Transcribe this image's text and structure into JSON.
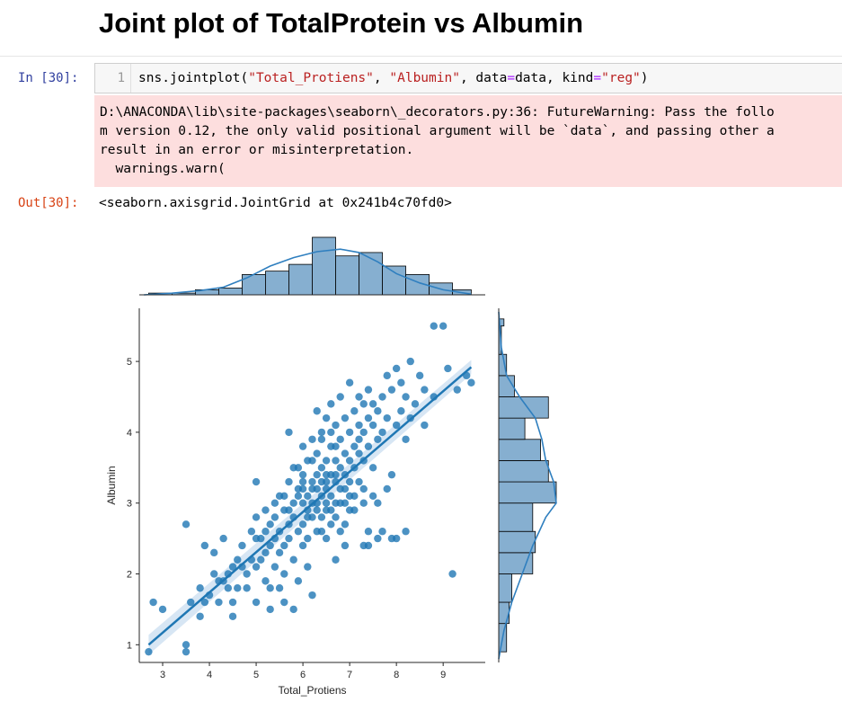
{
  "notebook": {
    "heading": "Joint plot of TotalProtein vs Albumin",
    "input_prompt": "In [30]:",
    "line_number": "1",
    "code": {
      "fn": "sns.jointplot(",
      "arg1": "\"Total_Protiens\"",
      "sep1": ", ",
      "arg2": "\"Albumin\"",
      "sep2": ", data",
      "eq1": "=",
      "mid": "data, kind",
      "eq2": "=",
      "arg3": "\"reg\"",
      "close": ")"
    },
    "warning_lines": [
      "D:\\ANACONDA\\lib\\site-packages\\seaborn\\_decorators.py:36: FutureWarning: Pass the follo",
      "m version 0.12, the only valid positional argument will be `data`, and passing other a",
      "result in an error or misinterpretation.",
      "  warnings.warn("
    ],
    "output_prompt": "Out[30]:",
    "output_text": "<seaborn.axisgrid.JointGrid at 0x241b4c70fd0>"
  },
  "chart_data": {
    "type": "scatter",
    "kind": "reg",
    "xlabel": "Total_Protiens",
    "ylabel": "Albumin",
    "xlim": [
      2.5,
      9.9
    ],
    "ylim": [
      0.75,
      5.75
    ],
    "x_ticks": [
      3,
      4,
      5,
      6,
      7,
      8,
      9
    ],
    "y_ticks": [
      1,
      2,
      3,
      4,
      5
    ],
    "colors": {
      "points": "#1f77b4",
      "hist_fill": "#86afd0",
      "kde": "#2f7fbf",
      "band": "#c6dbef"
    },
    "regression": {
      "x0": 2.7,
      "y0": 1.0,
      "x1": 9.6,
      "y1": 4.92
    },
    "points": [
      [
        2.7,
        0.9
      ],
      [
        2.8,
        1.6
      ],
      [
        3.0,
        1.5
      ],
      [
        3.5,
        1.0
      ],
      [
        3.5,
        0.9
      ],
      [
        3.5,
        2.7
      ],
      [
        3.6,
        1.6
      ],
      [
        3.8,
        1.8
      ],
      [
        3.8,
        1.4
      ],
      [
        3.9,
        1.6
      ],
      [
        3.9,
        2.4
      ],
      [
        4.0,
        1.7
      ],
      [
        4.1,
        2.0
      ],
      [
        4.1,
        2.3
      ],
      [
        4.2,
        1.9
      ],
      [
        4.2,
        1.6
      ],
      [
        4.3,
        2.5
      ],
      [
        4.4,
        1.8
      ],
      [
        4.4,
        2.0
      ],
      [
        4.5,
        2.1
      ],
      [
        4.5,
        1.4
      ],
      [
        4.6,
        2.2
      ],
      [
        4.6,
        1.8
      ],
      [
        4.7,
        2.4
      ],
      [
        4.8,
        2.0
      ],
      [
        4.8,
        1.8
      ],
      [
        4.9,
        2.6
      ],
      [
        4.9,
        2.2
      ],
      [
        5.0,
        2.8
      ],
      [
        5.0,
        2.5
      ],
      [
        5.0,
        1.6
      ],
      [
        5.0,
        3.3
      ],
      [
        5.0,
        2.1
      ],
      [
        5.1,
        2.2
      ],
      [
        5.2,
        2.6
      ],
      [
        5.2,
        2.9
      ],
      [
        5.2,
        1.9
      ],
      [
        5.3,
        2.4
      ],
      [
        5.3,
        2.7
      ],
      [
        5.3,
        1.5
      ],
      [
        5.4,
        2.8
      ],
      [
        5.4,
        2.1
      ],
      [
        5.4,
        3.0
      ],
      [
        5.5,
        2.6
      ],
      [
        5.5,
        2.3
      ],
      [
        5.5,
        1.8
      ],
      [
        5.6,
        2.9
      ],
      [
        5.6,
        2.4
      ],
      [
        5.6,
        3.1
      ],
      [
        5.6,
        2.0
      ],
      [
        5.7,
        2.7
      ],
      [
        5.7,
        3.3
      ],
      [
        5.7,
        2.5
      ],
      [
        5.7,
        4.0
      ],
      [
        5.8,
        2.8
      ],
      [
        5.8,
        3.0
      ],
      [
        5.8,
        2.2
      ],
      [
        5.8,
        1.5
      ],
      [
        5.9,
        3.2
      ],
      [
        5.9,
        2.6
      ],
      [
        5.9,
        3.5
      ],
      [
        5.9,
        1.9
      ],
      [
        6.0,
        3.0
      ],
      [
        6.0,
        2.7
      ],
      [
        6.0,
        3.8
      ],
      [
        6.0,
        2.4
      ],
      [
        6.0,
        3.3
      ],
      [
        6.1,
        2.9
      ],
      [
        6.1,
        3.1
      ],
      [
        6.1,
        2.5
      ],
      [
        6.1,
        3.6
      ],
      [
        6.1,
        2.1
      ],
      [
        6.2,
        3.2
      ],
      [
        6.2,
        2.8
      ],
      [
        6.2,
        3.9
      ],
      [
        6.2,
        3.0
      ],
      [
        6.2,
        1.7
      ],
      [
        6.3,
        3.4
      ],
      [
        6.3,
        2.9
      ],
      [
        6.3,
        2.6
      ],
      [
        6.3,
        3.7
      ],
      [
        6.3,
        4.3
      ],
      [
        6.4,
        3.1
      ],
      [
        6.4,
        3.3
      ],
      [
        6.4,
        2.8
      ],
      [
        6.4,
        4.0
      ],
      [
        6.4,
        3.5
      ],
      [
        6.5,
        3.2
      ],
      [
        6.5,
        2.9
      ],
      [
        6.5,
        3.6
      ],
      [
        6.5,
        3.0
      ],
      [
        6.5,
        4.2
      ],
      [
        6.5,
        2.5
      ],
      [
        6.6,
        3.4
      ],
      [
        6.6,
        3.8
      ],
      [
        6.6,
        3.1
      ],
      [
        6.6,
        2.7
      ],
      [
        6.6,
        4.4
      ],
      [
        6.7,
        3.3
      ],
      [
        6.7,
        3.6
      ],
      [
        6.7,
        3.0
      ],
      [
        6.7,
        4.1
      ],
      [
        6.7,
        2.8
      ],
      [
        6.7,
        2.2
      ],
      [
        6.8,
        3.5
      ],
      [
        6.8,
        3.9
      ],
      [
        6.8,
        3.2
      ],
      [
        6.8,
        4.5
      ],
      [
        6.8,
        2.6
      ],
      [
        6.9,
        3.4
      ],
      [
        6.9,
        3.7
      ],
      [
        6.9,
        4.2
      ],
      [
        6.9,
        3.0
      ],
      [
        6.9,
        2.4
      ],
      [
        7.0,
        3.6
      ],
      [
        7.0,
        4.0
      ],
      [
        7.0,
        3.3
      ],
      [
        7.0,
        4.7
      ],
      [
        7.0,
        2.9
      ],
      [
        7.1,
        3.8
      ],
      [
        7.1,
        4.3
      ],
      [
        7.1,
        3.5
      ],
      [
        7.1,
        3.1
      ],
      [
        7.2,
        3.9
      ],
      [
        7.2,
        4.1
      ],
      [
        7.2,
        3.7
      ],
      [
        7.2,
        4.5
      ],
      [
        7.3,
        4.0
      ],
      [
        7.3,
        3.6
      ],
      [
        7.3,
        4.4
      ],
      [
        7.3,
        3.2
      ],
      [
        7.4,
        4.2
      ],
      [
        7.4,
        3.8
      ],
      [
        7.4,
        4.6
      ],
      [
        7.4,
        2.6
      ],
      [
        7.5,
        4.1
      ],
      [
        7.5,
        3.5
      ],
      [
        7.5,
        4.4
      ],
      [
        7.6,
        3.9
      ],
      [
        7.6,
        4.3
      ],
      [
        7.6,
        3.0
      ],
      [
        7.7,
        4.0
      ],
      [
        7.7,
        4.5
      ],
      [
        7.7,
        2.6
      ],
      [
        7.8,
        3.2
      ],
      [
        7.8,
        4.2
      ],
      [
        7.8,
        4.8
      ],
      [
        7.9,
        3.4
      ],
      [
        7.9,
        4.6
      ],
      [
        8.0,
        4.1
      ],
      [
        8.0,
        2.5
      ],
      [
        8.0,
        4.9
      ],
      [
        8.1,
        4.3
      ],
      [
        8.1,
        4.7
      ],
      [
        8.2,
        3.9
      ],
      [
        8.2,
        4.5
      ],
      [
        8.3,
        4.2
      ],
      [
        8.3,
        5.0
      ],
      [
        8.4,
        4.4
      ],
      [
        8.5,
        4.8
      ],
      [
        8.6,
        4.1
      ],
      [
        8.6,
        4.6
      ],
      [
        8.8,
        4.5
      ],
      [
        8.8,
        5.5
      ],
      [
        9.0,
        5.5
      ],
      [
        9.1,
        4.9
      ],
      [
        9.2,
        2.0
      ],
      [
        9.3,
        4.6
      ],
      [
        9.5,
        4.8
      ],
      [
        9.6,
        4.7
      ],
      [
        5.9,
        3.1
      ],
      [
        6.0,
        3.4
      ],
      [
        6.1,
        2.8
      ],
      [
        6.2,
        3.6
      ],
      [
        6.3,
        3.0
      ],
      [
        6.4,
        2.6
      ],
      [
        6.5,
        3.4
      ],
      [
        6.6,
        2.9
      ],
      [
        6.7,
        3.8
      ],
      [
        6.8,
        3.0
      ],
      [
        6.9,
        3.2
      ],
      [
        7.0,
        3.1
      ],
      [
        7.1,
        2.9
      ],
      [
        7.2,
        3.3
      ],
      [
        7.3,
        3.0
      ],
      [
        6.4,
        3.9
      ],
      [
        6.6,
        4.0
      ],
      [
        5.4,
        2.5
      ],
      [
        5.5,
        3.1
      ],
      [
        5.7,
        2.9
      ],
      [
        5.8,
        3.5
      ],
      [
        5.2,
        2.3
      ],
      [
        5.1,
        2.5
      ],
      [
        4.7,
        2.1
      ],
      [
        4.3,
        1.9
      ],
      [
        6.0,
        3.2
      ],
      [
        6.2,
        3.3
      ],
      [
        6.3,
        3.2
      ],
      [
        6.5,
        3.3
      ],
      [
        6.7,
        3.4
      ],
      [
        7.5,
        3.1
      ],
      [
        7.6,
        2.5
      ],
      [
        7.9,
        2.5
      ],
      [
        8.2,
        2.6
      ],
      [
        7.4,
        2.4
      ],
      [
        7.3,
        2.4
      ],
      [
        6.9,
        2.7
      ],
      [
        5.6,
        1.6
      ],
      [
        5.3,
        1.8
      ],
      [
        4.5,
        1.6
      ]
    ],
    "x_hist": {
      "bins": [
        2.7,
        3.2,
        3.7,
        4.2,
        4.7,
        5.2,
        5.7,
        6.2,
        6.7,
        7.2,
        7.7,
        8.2,
        8.7,
        9.2,
        9.6
      ],
      "counts": [
        1,
        1,
        3,
        4,
        12,
        14,
        18,
        34,
        23,
        25,
        17,
        12,
        7,
        3
      ]
    },
    "y_hist": {
      "bins": [
        0.9,
        1.3,
        1.6,
        2.0,
        2.3,
        2.6,
        3.0,
        3.3,
        3.6,
        3.9,
        4.2,
        4.5,
        4.8,
        5.1,
        5.5,
        5.6
      ],
      "counts": [
        3,
        4,
        5,
        13,
        14,
        13,
        22,
        19,
        16,
        10,
        19,
        6,
        3,
        1,
        2
      ]
    },
    "x_kde": [
      [
        2.6,
        0
      ],
      [
        3.2,
        1
      ],
      [
        3.8,
        2.5
      ],
      [
        4.3,
        4.5
      ],
      [
        4.8,
        10
      ],
      [
        5.3,
        17
      ],
      [
        5.8,
        22
      ],
      [
        6.3,
        25.5
      ],
      [
        6.8,
        27
      ],
      [
        7.2,
        25
      ],
      [
        7.6,
        19.5
      ],
      [
        8.0,
        12.5
      ],
      [
        8.5,
        7
      ],
      [
        9.0,
        3
      ],
      [
        9.6,
        0.4
      ]
    ],
    "y_kde": [
      [
        0.8,
        0
      ],
      [
        1.2,
        2
      ],
      [
        1.6,
        5
      ],
      [
        2.0,
        9
      ],
      [
        2.4,
        13
      ],
      [
        2.8,
        18
      ],
      [
        3.0,
        22
      ],
      [
        3.3,
        21
      ],
      [
        3.6,
        18
      ],
      [
        3.9,
        16.5
      ],
      [
        4.2,
        14
      ],
      [
        4.5,
        8
      ],
      [
        4.8,
        3
      ],
      [
        5.2,
        1
      ],
      [
        5.7,
        0
      ]
    ]
  }
}
